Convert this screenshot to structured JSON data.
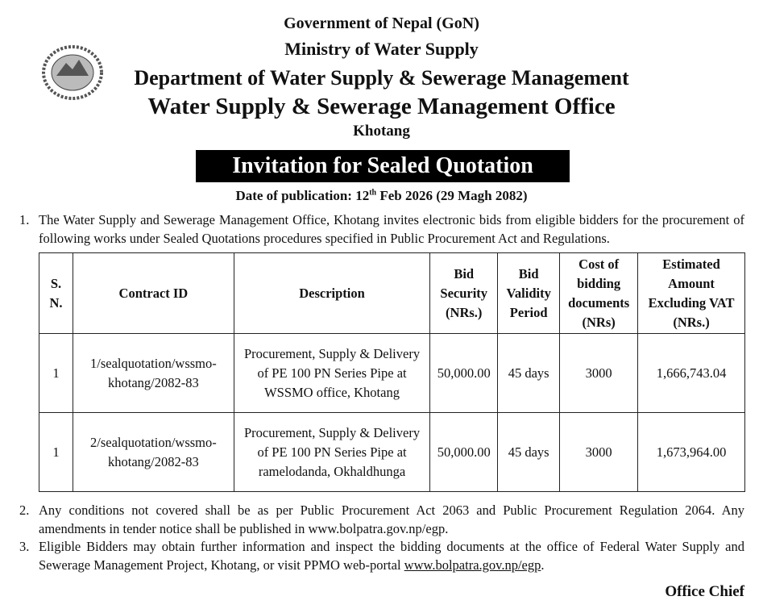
{
  "header": {
    "government": "Government of Nepal (GoN)",
    "ministry": "Ministry of Water Supply",
    "department": "Department of Water Supply & Sewerage Management",
    "office": "Water Supply & Sewerage Management Office",
    "location": "Khotang"
  },
  "title": "Invitation for Sealed Quotation",
  "publication": {
    "prefix": "Date of publication: 12",
    "superscript": "th",
    "suffix": " Feb 2026 (29 Magh 2082)"
  },
  "items": [
    {
      "number": "1.",
      "text": "The Water Supply and Sewerage Management Office, Khotang invites  electronic bids from eligible bidders for the procurement of following works under Sealed Quotations procedures specified in Public Procurement Act and Regulations."
    },
    {
      "number": "2.",
      "text": "Any conditions not covered shall be as per Public Procurement Act 2063 and Public Procurement Regulation 2064. Any amendments in tender notice shall be published in www.bolpatra.gov.np/egp."
    },
    {
      "number": "3.",
      "text": "Eligible Bidders may obtain further information and inspect the bidding documents at the office of Federal Water Supply and Sewerage Management Project, Khotang, or visit PPMO web-portal ",
      "link": "www.bolpatra.gov.np/egp",
      "end": "."
    }
  ],
  "table": {
    "headers": [
      [
        "S.",
        "N."
      ],
      [
        "Contract ID"
      ],
      [
        "Description"
      ],
      [
        "Bid",
        "Security",
        "(NRs.)"
      ],
      [
        "Bid",
        "Validity",
        "Period"
      ],
      [
        "Cost of",
        "bidding",
        "documents",
        "(NRs)"
      ],
      [
        "Estimated",
        "Amount",
        "Excluding VAT",
        "(NRs.)"
      ]
    ],
    "rows": [
      [
        "1",
        "1/sealquotation/wssmo-khotang/2082-83",
        "Procurement, Supply & Delivery of PE 100 PN Series Pipe at WSSMO office, Khotang",
        "50,000.00",
        "45 days",
        "3000",
        "1,666,743.04"
      ],
      [
        "1",
        "2/sealquotation/wssmo-khotang/2082-83",
        "Procurement, Supply & Delivery of PE 100 PN Series Pipe at ramelodanda, Okhaldhunga",
        "50,000.00",
        "45 days",
        "3000",
        "1,673,964.00"
      ]
    ]
  },
  "signature": "Office Chief"
}
